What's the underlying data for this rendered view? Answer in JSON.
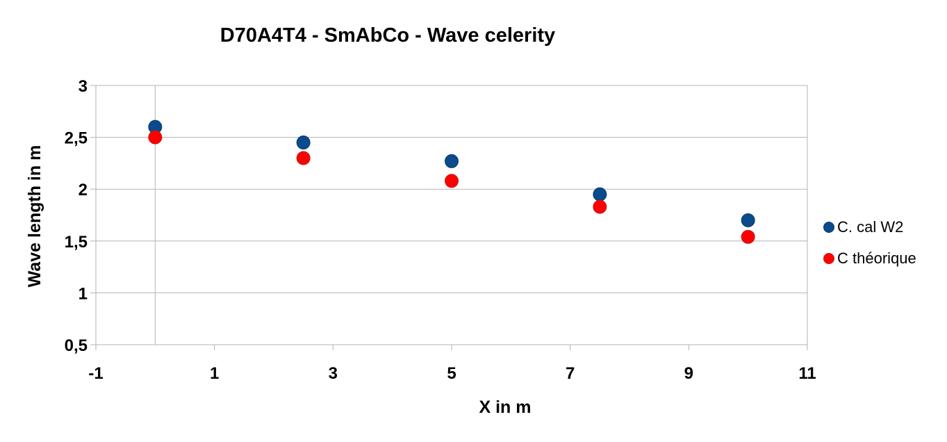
{
  "chart_data": {
    "type": "scatter",
    "title": "D70A4T4  - SmAbCo - Wave celerity",
    "xlabel": "X in m",
    "ylabel": "Wave length in m",
    "xlim": [
      -1,
      11
    ],
    "ylim": [
      0.5,
      3
    ],
    "x_ticks": [
      "-1",
      "1",
      "3",
      "5",
      "7",
      "9",
      "11"
    ],
    "y_ticks": [
      "0,5",
      "1",
      "1,5",
      "2",
      "2,5",
      "3"
    ],
    "grid": "horizontal",
    "legend_position": "right",
    "series": [
      {
        "name": "C. cal W2",
        "color": "#0b4a8b",
        "x": [
          0,
          2.5,
          5,
          7.5,
          10
        ],
        "y": [
          2.6,
          2.45,
          2.27,
          1.95,
          1.7
        ]
      },
      {
        "name": "C théorique",
        "color": "#ff0000",
        "x": [
          0,
          2.5,
          5,
          7.5,
          10
        ],
        "y": [
          2.5,
          2.3,
          2.08,
          1.83,
          1.54
        ]
      }
    ]
  }
}
